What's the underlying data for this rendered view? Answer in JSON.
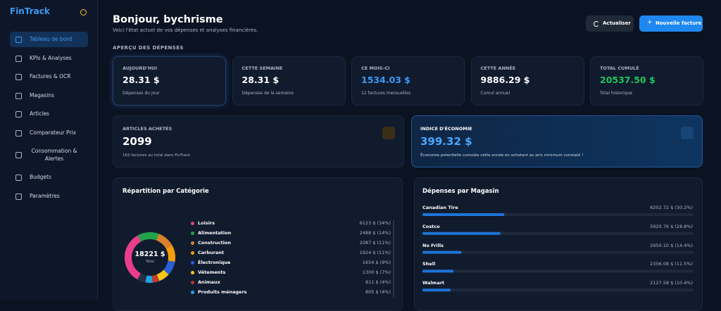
{
  "sidebar": {
    "brand": "FinTrack",
    "nav": [
      "Tableau de bord",
      "KPIs & Analyses",
      "Factures & OCR",
      "Magasins",
      "Articles",
      "Comparateur Prix",
      "Consommation & Alertes",
      "Budgets",
      "Paramètres"
    ]
  },
  "header": {
    "title": "Bonjour, bychrisme",
    "subtitle": "Voici l'état actuel de vos dépenses et analyses financières.",
    "buttons": [
      "Actualiser",
      "Nouvelle facture"
    ]
  },
  "overview": {
    "title": "APERÇU DES DÉPENSES",
    "cards": [
      {
        "label": "AUJOURD'HUI",
        "value": "28.31 $",
        "note": "Dépenses du jour",
        "color": "#ffffff"
      },
      {
        "label": "CETTE SEMAINE",
        "value": "28.31 $",
        "note": "Dépenses de la semaine",
        "color": "#ffffff"
      },
      {
        "label": "CE MOIS-CI",
        "value": "1534.03 $",
        "note": "12 factures mensuelles",
        "color": "#3b9af5"
      },
      {
        "label": "CETTE ANNÉE",
        "value": "9886.29 $",
        "note": "Cumul annuel",
        "color": "#ffffff"
      },
      {
        "label": "TOTAL CUMULÉ",
        "value": "20537.50 $",
        "note": "Total historique",
        "color": "#22c55e"
      }
    ]
  },
  "highlights": [
    {
      "label": "ARTICLES ACHETÉS",
      "value": "2099",
      "note": "163 factures au total dans FinTrack"
    },
    {
      "label": "INDICE D'ÉCONOMIE",
      "value": "399.32 $",
      "note": "Économie potentielle cumulée cette année en achetant au prix minimum constaté !"
    }
  ],
  "chart_data": [
    {
      "type": "donut",
      "title": "Répartition par Catégorie",
      "total": {
        "value": 18221,
        "label": "18221 $"
      },
      "total_caption": "Total",
      "categories": [
        "Loisirs",
        "Alimentation",
        "Construction",
        "Carburant",
        "Électronique",
        "Vêtements",
        "Animaux",
        "Produits ménagers"
      ],
      "values": [
        6123,
        2488,
        2087,
        1924,
        1654,
        1300,
        811,
        805
      ],
      "value_labels": [
        "6123 $ (34%)",
        "2488 $ (14%)",
        "2087 $ (11%)",
        "1924 $ (11%)",
        "1654 $ (9%)",
        "1300 $ (7%)",
        "811 $ (4%)",
        "805 $ (4%)"
      ],
      "colors": [
        "#e83e8c",
        "#22a34a",
        "#d9822b",
        "#f59e0b",
        "#2b5fd9",
        "#f5c518",
        "#c0392b",
        "#1ea7e8"
      ]
    },
    {
      "type": "bar",
      "title": "Dépenses par Magasin",
      "categories": [
        "Canadian Tire",
        "Costco",
        "No Frills",
        "Shell",
        "Walmart"
      ],
      "values": [
        30.2,
        28.8,
        14.4,
        11.5,
        10.4
      ],
      "value_labels": [
        "6202.72 $ (30.2%)",
        "5920.76 $ (28.8%)",
        "2950.10 $ (14.4%)",
        "2356.08 $ (11.5%)",
        "2127.58 $ (10.4%)"
      ],
      "color": "#1e74d6"
    }
  ]
}
